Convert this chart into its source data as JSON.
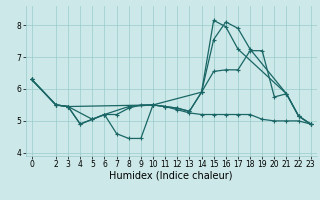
{
  "background_color": "#cce8e8",
  "grid_color": "#99cccc",
  "line_color": "#1a6666",
  "line_width": 0.9,
  "marker": "+",
  "marker_size": 3,
  "marker_lw": 0.8,
  "xlabel": "Humidex (Indice chaleur)",
  "xlabel_fontsize": 7,
  "tick_fontsize": 5.5,
  "xlim": [
    -0.5,
    23.5
  ],
  "ylim": [
    3.9,
    8.6
  ],
  "yticks": [
    4,
    5,
    6,
    7,
    8
  ],
  "xticks": [
    0,
    2,
    3,
    4,
    5,
    6,
    7,
    8,
    9,
    10,
    11,
    12,
    13,
    14,
    15,
    16,
    17,
    18,
    19,
    20,
    21,
    22,
    23
  ],
  "series": [
    {
      "x": [
        0,
        2,
        3,
        4,
        5,
        6,
        7,
        8,
        9,
        10,
        11,
        12,
        13,
        14,
        15,
        16,
        17,
        21,
        22,
        23
      ],
      "y": [
        6.3,
        5.5,
        5.45,
        4.9,
        5.05,
        5.2,
        4.6,
        4.45,
        4.45,
        5.5,
        5.45,
        5.4,
        5.3,
        5.9,
        8.15,
        7.95,
        7.25,
        5.85,
        5.15,
        4.9
      ]
    },
    {
      "x": [
        0,
        2,
        3,
        4,
        5,
        6,
        7,
        8,
        9,
        10,
        11,
        12,
        13,
        14,
        15,
        16,
        17,
        18,
        21,
        22,
        23
      ],
      "y": [
        6.3,
        5.5,
        5.45,
        4.9,
        5.05,
        5.2,
        5.2,
        5.4,
        5.5,
        5.5,
        5.45,
        5.4,
        5.3,
        5.9,
        7.55,
        8.1,
        7.9,
        7.25,
        5.85,
        5.15,
        4.9
      ]
    },
    {
      "x": [
        0,
        2,
        3,
        5,
        6,
        8,
        10,
        11,
        12,
        13,
        14,
        15,
        16,
        17,
        18,
        19,
        20,
        21,
        22,
        23
      ],
      "y": [
        6.3,
        5.5,
        5.45,
        5.05,
        5.2,
        5.45,
        5.5,
        5.45,
        5.35,
        5.25,
        5.2,
        5.2,
        5.2,
        5.2,
        5.2,
        5.05,
        5.0,
        5.0,
        5.0,
        4.9
      ]
    },
    {
      "x": [
        0,
        2,
        3,
        10,
        14,
        15,
        16,
        17,
        18,
        19,
        20,
        21,
        22,
        23
      ],
      "y": [
        6.3,
        5.5,
        5.45,
        5.5,
        5.9,
        6.55,
        6.6,
        6.6,
        7.2,
        7.2,
        5.75,
        5.85,
        5.15,
        4.9
      ]
    }
  ]
}
